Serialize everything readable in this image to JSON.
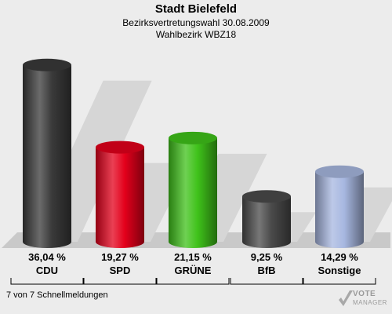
{
  "header": {
    "title": "Stadt Bielefeld",
    "subtitle": "Bezirksvertretungswahl 30.08.2009",
    "district": "Wahlbezirk WBZ18"
  },
  "footer": {
    "note": "7 von 7 Schnellmeldungen"
  },
  "logo": {
    "line1": "VOTE",
    "line2": "MANAGER"
  },
  "chart_data": {
    "type": "bar",
    "title": "Stadt Bielefeld",
    "categories": [
      "CDU",
      "SPD",
      "GRÜNE",
      "BfB",
      "Sonstige"
    ],
    "values": [
      36.04,
      19.27,
      21.15,
      9.25,
      14.29
    ],
    "value_labels": [
      "36,04 %",
      "19,27 %",
      "21,15 %",
      "9,25 %",
      "14,29 %"
    ],
    "colors": [
      "#3a3a3a",
      "#e3001b",
      "#3fc21a",
      "#4a4a4a",
      "#a7b7e0"
    ],
    "ylim": [
      0,
      40
    ],
    "grid": true,
    "legend": "none"
  }
}
